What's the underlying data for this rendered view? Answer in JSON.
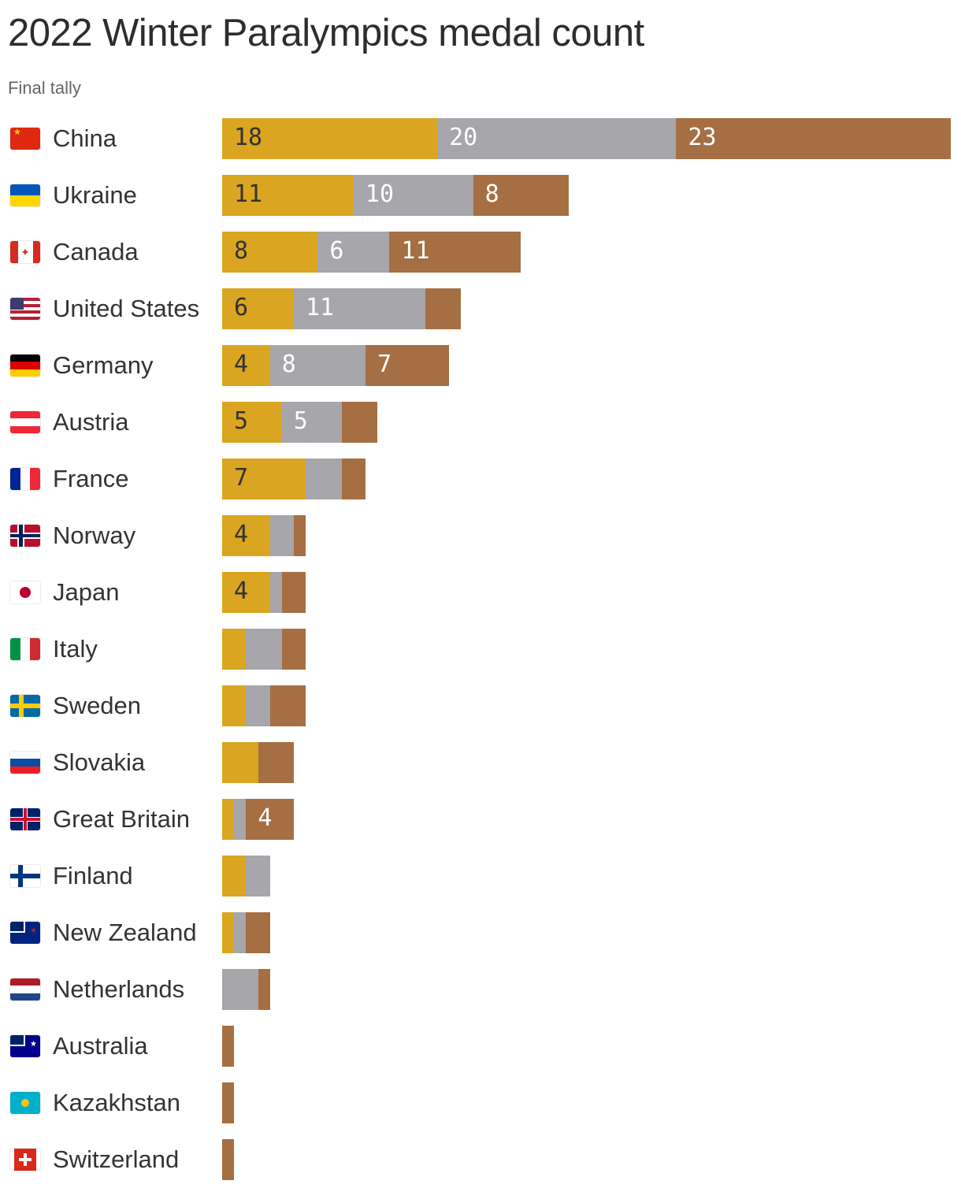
{
  "title": "2022 Winter Paralympics medal count",
  "subtitle": "Final tally",
  "colors": {
    "gold": "#DAA520",
    "silver": "#A7A6AB",
    "bronze": "#A56F43"
  },
  "chart_data": {
    "type": "bar",
    "orientation": "horizontal",
    "stacked": true,
    "title": "2022 Winter Paralympics medal count",
    "subtitle": "Final tally",
    "xlabel": "",
    "ylabel": "",
    "grid": false,
    "legend": "none",
    "categories": [
      "China",
      "Ukraine",
      "Canada",
      "United States",
      "Germany",
      "Austria",
      "France",
      "Norway",
      "Japan",
      "Italy",
      "Sweden",
      "Slovakia",
      "Great Britain",
      "Finland",
      "New Zealand",
      "Netherlands",
      "Australia",
      "Kazakhstan",
      "Switzerland"
    ],
    "series": [
      {
        "name": "Gold",
        "color": "#DAA520",
        "values": [
          18,
          11,
          8,
          6,
          4,
          5,
          7,
          4,
          4,
          2,
          2,
          3,
          1,
          2,
          1,
          0,
          0,
          0,
          0
        ]
      },
      {
        "name": "Silver",
        "color": "#A7A6AB",
        "values": [
          20,
          10,
          6,
          11,
          8,
          5,
          3,
          2,
          1,
          3,
          2,
          0,
          1,
          2,
          1,
          3,
          0,
          0,
          0
        ]
      },
      {
        "name": "Bronze",
        "color": "#A56F43",
        "values": [
          23,
          8,
          11,
          3,
          7,
          3,
          2,
          1,
          2,
          2,
          3,
          3,
          4,
          0,
          2,
          1,
          1,
          1,
          1
        ]
      }
    ],
    "data_labels": {
      "China": {
        "gold": "18",
        "silver": "20",
        "bronze": "23"
      },
      "Ukraine": {
        "gold": "11",
        "silver": "10",
        "bronze": "8"
      },
      "Canada": {
        "gold": "8",
        "silver": "6",
        "bronze": "11"
      },
      "United States": {
        "gold": "6",
        "silver": "11"
      },
      "Germany": {
        "gold": "4",
        "silver": "8",
        "bronze": "7"
      },
      "Austria": {
        "gold": "5",
        "silver": "5"
      },
      "France": {
        "gold": "7"
      },
      "Norway": {
        "gold": "4"
      },
      "Japan": {
        "gold": "4"
      },
      "Great Britain": {
        "bronze": "4"
      }
    }
  },
  "rows": [
    {
      "country": "China",
      "flag": "cn",
      "gold": 18,
      "silver": 20,
      "bronze": 23,
      "gl": "18",
      "sl": "20",
      "bl": "23"
    },
    {
      "country": "Ukraine",
      "flag": "ua",
      "gold": 11,
      "silver": 10,
      "bronze": 8,
      "gl": "11",
      "sl": "10",
      "bl": "8"
    },
    {
      "country": "Canada",
      "flag": "ca",
      "gold": 8,
      "silver": 6,
      "bronze": 11,
      "gl": "8",
      "sl": "6",
      "bl": "11"
    },
    {
      "country": "United States",
      "flag": "us",
      "gold": 6,
      "silver": 11,
      "bronze": 3,
      "gl": "6",
      "sl": "11",
      "bl": ""
    },
    {
      "country": "Germany",
      "flag": "de",
      "gold": 4,
      "silver": 8,
      "bronze": 7,
      "gl": "4",
      "sl": "8",
      "bl": "7"
    },
    {
      "country": "Austria",
      "flag": "at",
      "gold": 5,
      "silver": 5,
      "bronze": 3,
      "gl": "5",
      "sl": "5",
      "bl": ""
    },
    {
      "country": "France",
      "flag": "fr",
      "gold": 7,
      "silver": 3,
      "bronze": 2,
      "gl": "7",
      "sl": "",
      "bl": ""
    },
    {
      "country": "Norway",
      "flag": "no",
      "gold": 4,
      "silver": 2,
      "bronze": 1,
      "gl": "4",
      "sl": "",
      "bl": ""
    },
    {
      "country": "Japan",
      "flag": "jp",
      "gold": 4,
      "silver": 1,
      "bronze": 2,
      "gl": "4",
      "sl": "",
      "bl": ""
    },
    {
      "country": "Italy",
      "flag": "it",
      "gold": 2,
      "silver": 3,
      "bronze": 2,
      "gl": "",
      "sl": "",
      "bl": ""
    },
    {
      "country": "Sweden",
      "flag": "se",
      "gold": 2,
      "silver": 2,
      "bronze": 3,
      "gl": "",
      "sl": "",
      "bl": ""
    },
    {
      "country": "Slovakia",
      "flag": "sk",
      "gold": 3,
      "silver": 0,
      "bronze": 3,
      "gl": "",
      "sl": "",
      "bl": ""
    },
    {
      "country": "Great Britain",
      "flag": "gb",
      "gold": 1,
      "silver": 1,
      "bronze": 4,
      "gl": "",
      "sl": "",
      "bl": "4"
    },
    {
      "country": "Finland",
      "flag": "fi",
      "gold": 2,
      "silver": 2,
      "bronze": 0,
      "gl": "",
      "sl": "",
      "bl": ""
    },
    {
      "country": "New Zealand",
      "flag": "nz",
      "gold": 1,
      "silver": 1,
      "bronze": 2,
      "gl": "",
      "sl": "",
      "bl": ""
    },
    {
      "country": "Netherlands",
      "flag": "nl",
      "gold": 0,
      "silver": 3,
      "bronze": 1,
      "gl": "",
      "sl": "",
      "bl": ""
    },
    {
      "country": "Australia",
      "flag": "au",
      "gold": 0,
      "silver": 0,
      "bronze": 1,
      "gl": "",
      "sl": "",
      "bl": ""
    },
    {
      "country": "Kazakhstan",
      "flag": "kz",
      "gold": 0,
      "silver": 0,
      "bronze": 1,
      "gl": "",
      "sl": "",
      "bl": ""
    },
    {
      "country": "Switzerland",
      "flag": "ch",
      "gold": 0,
      "silver": 0,
      "bronze": 1,
      "gl": "",
      "sl": "",
      "bl": ""
    }
  ]
}
